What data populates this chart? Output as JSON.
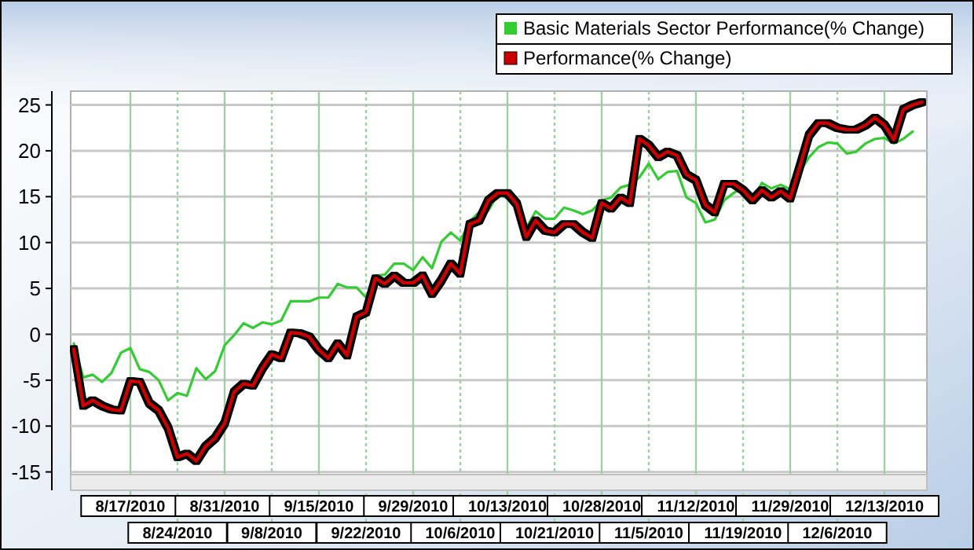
{
  "chart_data": {
    "type": "line",
    "categories": [
      null,
      null,
      null,
      null,
      null,
      null,
      "8/17/2010",
      null,
      null,
      null,
      null,
      "8/24/2010",
      null,
      null,
      null,
      null,
      "8/31/2010",
      null,
      null,
      null,
      null,
      "9/8/2010",
      null,
      null,
      null,
      null,
      "9/15/2010",
      null,
      null,
      null,
      null,
      "9/22/2010",
      null,
      null,
      null,
      null,
      "9/29/2010",
      null,
      null,
      null,
      null,
      "10/6/2010",
      null,
      null,
      null,
      null,
      "10/13/2010",
      null,
      null,
      null,
      null,
      "10/21/2010",
      null,
      null,
      null,
      null,
      "10/28/2010",
      null,
      null,
      null,
      null,
      "11/5/2010",
      null,
      null,
      null,
      null,
      "11/12/2010",
      null,
      null,
      null,
      null,
      "11/19/2010",
      null,
      null,
      null,
      null,
      "11/29/2010",
      null,
      null,
      null,
      null,
      "12/6/2010",
      null,
      null,
      null,
      null,
      "12/13/2010",
      null,
      null,
      null,
      null
    ],
    "series": [
      {
        "name": "Basic Materials Sector Performance(% Change)",
        "color": "#33cc33",
        "values": [
          -1,
          -4.7,
          -4.4,
          -5.2,
          -4.2,
          -2,
          -1.5,
          -3.8,
          -4.1,
          -5,
          -7.2,
          -6.4,
          -6.7,
          -3.7,
          -4.9,
          -4,
          -1.2,
          -0.1,
          1.2,
          0.7,
          1.3,
          1.1,
          1.5,
          3.6,
          3.6,
          3.6,
          4,
          4,
          5.5,
          5.1,
          5.1,
          4,
          6.4,
          6.5,
          7.7,
          7.7,
          7,
          8.4,
          7.2,
          10.1,
          11.1,
          10.2,
          12.3,
          13.3,
          13.5,
          15.3,
          14.8,
          14.5,
          11.6,
          13.4,
          12.6,
          12.6,
          13.8,
          13.5,
          13.1,
          13.5,
          14.6,
          14.9,
          16,
          16.3,
          17.1,
          18.6,
          16.9,
          17.7,
          17.8,
          14.9,
          14.3,
          12.2,
          12.5,
          14.6,
          15.4,
          16,
          14.6,
          16.5,
          15.9,
          16.3,
          15.8,
          17.7,
          19.3,
          20.4,
          20.9,
          20.8,
          19.7,
          19.9,
          20.8,
          21.3,
          21.4,
          20.8,
          21.3,
          22.1,
          null
        ]
      },
      {
        "name": "Performance(% Change)",
        "color": "#cc0000",
        "values": [
          -1.6,
          -7.8,
          -7.2,
          -7.8,
          -8.2,
          -8.3,
          -5.1,
          -5.2,
          -7.5,
          -8.3,
          -10.2,
          -13.4,
          -13,
          -13.8,
          -12.2,
          -11.3,
          -9.7,
          -6.3,
          -5.4,
          -5.6,
          -3.7,
          -2.2,
          -2.6,
          0.2,
          0.1,
          -0.3,
          -1.7,
          -2.6,
          -1,
          -2.3,
          1.9,
          2.4,
          6.1,
          5.5,
          6.4,
          5.6,
          5.6,
          6.4,
          4.4,
          5.9,
          7.7,
          6.6,
          12,
          12.4,
          14.6,
          15.4,
          15.4,
          14.2,
          10.6,
          12.4,
          11.3,
          11.1,
          12,
          12,
          11.1,
          10.5,
          14.3,
          13.7,
          14.9,
          14.3,
          21.3,
          20.6,
          19.3,
          19.9,
          19.5,
          17.4,
          16.8,
          14.1,
          13.3,
          16.4,
          16.4,
          15.7,
          14.6,
          15.7,
          14.9,
          15.6,
          14.8,
          18.2,
          21.7,
          23,
          23,
          22.5,
          22.3,
          22.3,
          22.8,
          23.6,
          22.8,
          21.2,
          24.5,
          25,
          25.3
        ]
      }
    ],
    "ylim": [
      -17,
      26.5
    ],
    "yticks": [
      -15,
      -10,
      -5,
      0,
      5,
      10,
      15,
      20,
      25
    ],
    "grid": true,
    "legend": "top right",
    "marker": "none",
    "line_style": "solid"
  }
}
